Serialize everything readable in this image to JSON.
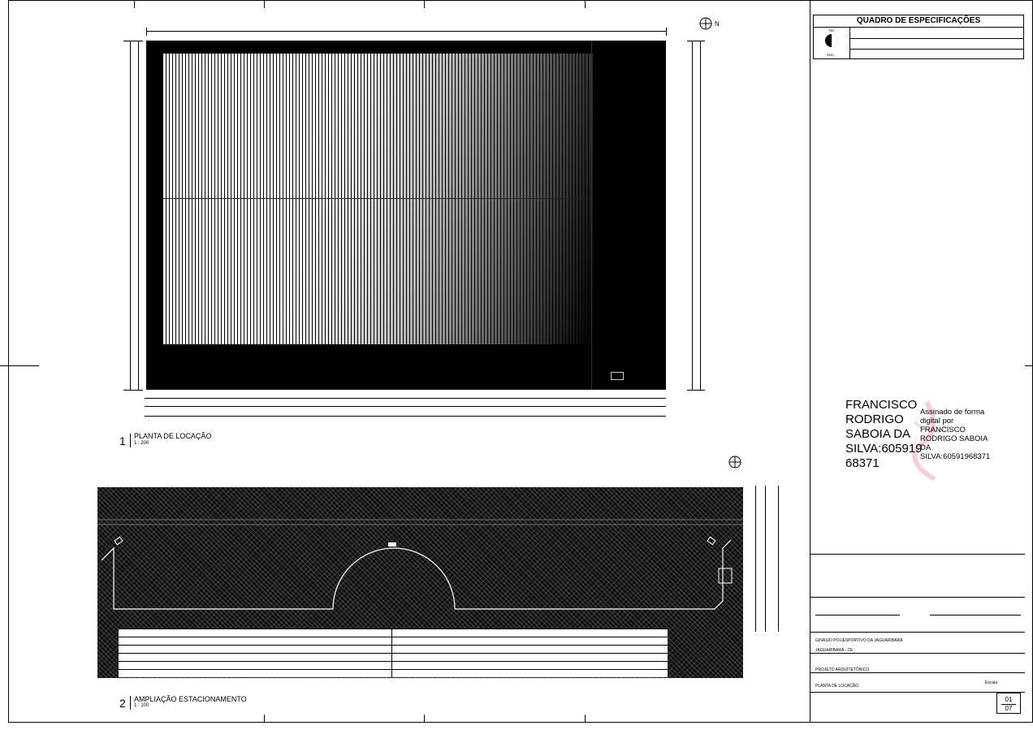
{
  "spec_table": {
    "title": "QUADRO DE ESPECIFICAÇÕES",
    "logo_top": "TIM",
    "logo_bottom": "RNO"
  },
  "view1": {
    "number": "1",
    "title": "PLANTA DE LOCAÇÃO",
    "scale": "1 : 200"
  },
  "view2": {
    "number": "2",
    "title": "AMPLIAÇÃO ESTACIONAMENTO",
    "scale": "1 : 100"
  },
  "north_label": "N",
  "signature": {
    "name_lines": [
      "FRANCISCO",
      "RODRIGO",
      "SABOIA DA",
      "SILVA:605919",
      "68371"
    ],
    "note_lines": [
      "Assinado de forma",
      "digital por",
      "FRANCISCO",
      "RODRIGO SABOIA",
      "DA",
      "SILVA:60591968371"
    ]
  },
  "title_block": {
    "row_project": "GINÁSIO POLIESPORTIVO DA JAGUARIBARA",
    "location": "JAGUARIBARA - CE",
    "phase": "PROJETO ARQUITETÔNICO",
    "sheet_title": "PLANTA DE LOCAÇÃO",
    "scale_label": "Escala",
    "sheet_number": "01",
    "sheet_total": "07"
  }
}
